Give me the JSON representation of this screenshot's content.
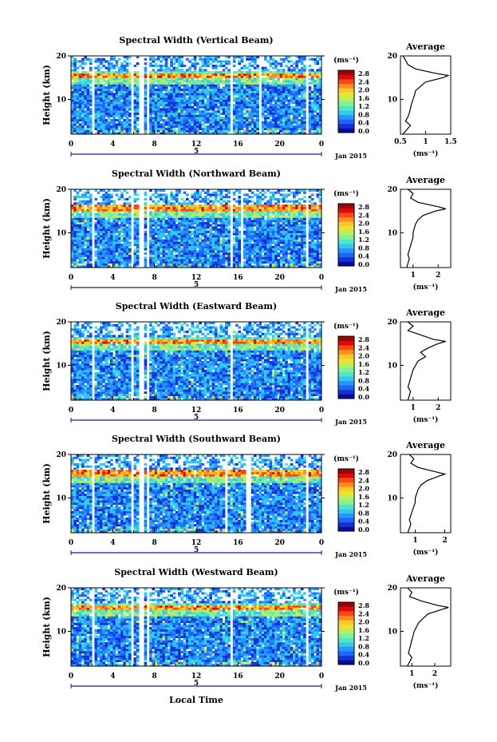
{
  "figure": {
    "xlabel": "Local Time",
    "ylabel": "Height (km)",
    "date_label": "Jan 2015",
    "day_label": "5",
    "x_ticks": [
      "0",
      "4",
      "8",
      "12",
      "16",
      "20",
      "0"
    ],
    "y_ticks": [
      "10",
      "20"
    ],
    "colorbar_unit": "(ms⁻¹)",
    "colorbar_ticks": [
      "2.8",
      "2.4",
      "2.0",
      "1.6",
      "1.2",
      "0.8",
      "0.4",
      "0.0"
    ],
    "avg_title": "Average",
    "avg_xlabel": "(ms⁻¹)"
  },
  "colors": {
    "scale": [
      "#0a0aa0",
      "#1432d2",
      "#1e64ff",
      "#2896ff",
      "#32c8f0",
      "#50e6c8",
      "#82f096",
      "#b4f064",
      "#e6e632",
      "#ffc828",
      "#ff8c1e",
      "#ff4614",
      "#dc0a0a",
      "#a00000"
    ]
  },
  "chart_data": [
    {
      "type": "heatmap",
      "title": "Spectral Width (Vertical Beam)",
      "x_range": [
        0,
        24
      ],
      "y_range": [
        2,
        20
      ],
      "gaps_hours": [
        [
          2.0,
          2.3
        ],
        [
          5.8,
          6.1
        ],
        [
          6.6,
          7.0
        ],
        [
          7.3,
          7.6
        ],
        [
          15.2,
          15.6
        ],
        [
          18.0,
          18.3
        ],
        [
          22.4,
          22.7
        ]
      ],
      "tropopause_km": 15.5,
      "average": {
        "xlim": [
          0.5,
          1.5
        ],
        "xticks": [
          "0.5",
          "1",
          "1.5"
        ],
        "heights": [
          2,
          3,
          4,
          5,
          6,
          7,
          8,
          9,
          10,
          11,
          12,
          13,
          14,
          15,
          15.5,
          16,
          17,
          18,
          19,
          20
        ],
        "values": [
          0.55,
          0.62,
          0.7,
          0.6,
          0.65,
          0.68,
          0.7,
          0.72,
          0.75,
          0.78,
          0.8,
          0.9,
          1.0,
          1.35,
          1.45,
          1.2,
          0.8,
          0.65,
          0.6,
          0.55
        ]
      }
    },
    {
      "type": "heatmap",
      "title": "Spectral Width (Northward Beam)",
      "x_range": [
        0,
        24
      ],
      "y_range": [
        2,
        20
      ],
      "gaps_hours": [
        [
          2.0,
          2.3
        ],
        [
          5.8,
          6.1
        ],
        [
          6.6,
          7.0
        ],
        [
          7.3,
          7.6
        ],
        [
          15.2,
          15.6
        ],
        [
          16.2,
          16.4
        ],
        [
          22.4,
          22.7
        ]
      ],
      "tropopause_km": 15.8,
      "average": {
        "xlim": [
          0.5,
          2.5
        ],
        "xticks": [
          "1",
          "2"
        ],
        "heights": [
          2,
          3,
          4,
          5,
          6,
          7,
          8,
          9,
          10,
          11,
          12,
          13,
          14,
          15,
          15.5,
          16,
          17,
          18,
          19,
          20
        ],
        "values": [
          0.75,
          0.8,
          0.85,
          0.8,
          0.85,
          0.9,
          0.95,
          1.0,
          1.0,
          1.05,
          1.1,
          1.2,
          1.4,
          1.9,
          2.3,
          2.0,
          1.2,
          0.9,
          1.0,
          0.8
        ]
      }
    },
    {
      "type": "heatmap",
      "title": "Spectral Width (Eastward Beam)",
      "x_range": [
        0,
        24
      ],
      "y_range": [
        2,
        20
      ],
      "gaps_hours": [
        [
          2.0,
          2.3
        ],
        [
          5.8,
          6.1
        ],
        [
          6.6,
          7.0
        ],
        [
          7.3,
          7.6
        ],
        [
          15.2,
          15.6
        ],
        [
          22.4,
          22.7
        ]
      ],
      "tropopause_km": 15.5,
      "average": {
        "xlim": [
          0.5,
          2.5
        ],
        "xticks": [
          "1",
          "2"
        ],
        "heights": [
          2,
          3,
          4,
          5,
          6,
          7,
          8,
          9,
          10,
          11,
          12,
          13,
          14,
          15,
          15.5,
          16,
          17,
          18,
          19,
          20
        ],
        "values": [
          0.8,
          0.85,
          0.9,
          0.8,
          0.85,
          0.9,
          0.95,
          1.0,
          1.1,
          1.2,
          1.5,
          1.3,
          1.6,
          2.0,
          2.3,
          1.8,
          1.3,
          0.8,
          1.0,
          0.8
        ]
      }
    },
    {
      "type": "heatmap",
      "title": "Spectral Width (Southward Beam)",
      "x_range": [
        0,
        24
      ],
      "y_range": [
        2,
        20
      ],
      "gaps_hours": [
        [
          2.0,
          2.3
        ],
        [
          5.8,
          6.1
        ],
        [
          6.6,
          7.0
        ],
        [
          7.3,
          7.6
        ],
        [
          14.8,
          15.1
        ],
        [
          16.8,
          17.2
        ],
        [
          22.4,
          22.7
        ]
      ],
      "tropopause_km": 15.6,
      "average": {
        "xlim": [
          0.5,
          2.2
        ],
        "xticks": [
          "1",
          "2"
        ],
        "heights": [
          2,
          3,
          4,
          5,
          6,
          7,
          8,
          9,
          10,
          11,
          12,
          13,
          14,
          15,
          15.5,
          16,
          17,
          18,
          19,
          20
        ],
        "values": [
          0.75,
          0.8,
          0.85,
          0.8,
          0.85,
          0.9,
          0.95,
          1.0,
          1.0,
          1.05,
          1.1,
          1.2,
          1.4,
          1.8,
          2.0,
          1.7,
          1.1,
          0.85,
          0.95,
          0.8
        ]
      }
    },
    {
      "type": "heatmap",
      "title": "Spectral Width (Westward Beam)",
      "x_range": [
        0,
        24
      ],
      "y_range": [
        2,
        20
      ],
      "gaps_hours": [
        [
          2.0,
          2.3
        ],
        [
          5.8,
          6.1
        ],
        [
          6.6,
          7.0
        ],
        [
          7.3,
          7.6
        ],
        [
          15.2,
          15.6
        ],
        [
          22.4,
          22.7
        ]
      ],
      "tropopause_km": 15.5,
      "average": {
        "xlim": [
          0.5,
          2.7
        ],
        "xticks": [
          "1",
          "2"
        ],
        "heights": [
          2,
          3,
          4,
          5,
          6,
          7,
          8,
          9,
          10,
          11,
          12,
          13,
          14,
          15,
          15.5,
          16,
          17,
          18,
          19,
          20
        ],
        "values": [
          0.8,
          0.9,
          1.0,
          0.85,
          0.9,
          0.95,
          1.0,
          1.05,
          1.1,
          1.2,
          1.3,
          1.5,
          1.7,
          2.3,
          2.6,
          2.1,
          1.4,
          0.9,
          1.0,
          0.8
        ]
      }
    }
  ]
}
